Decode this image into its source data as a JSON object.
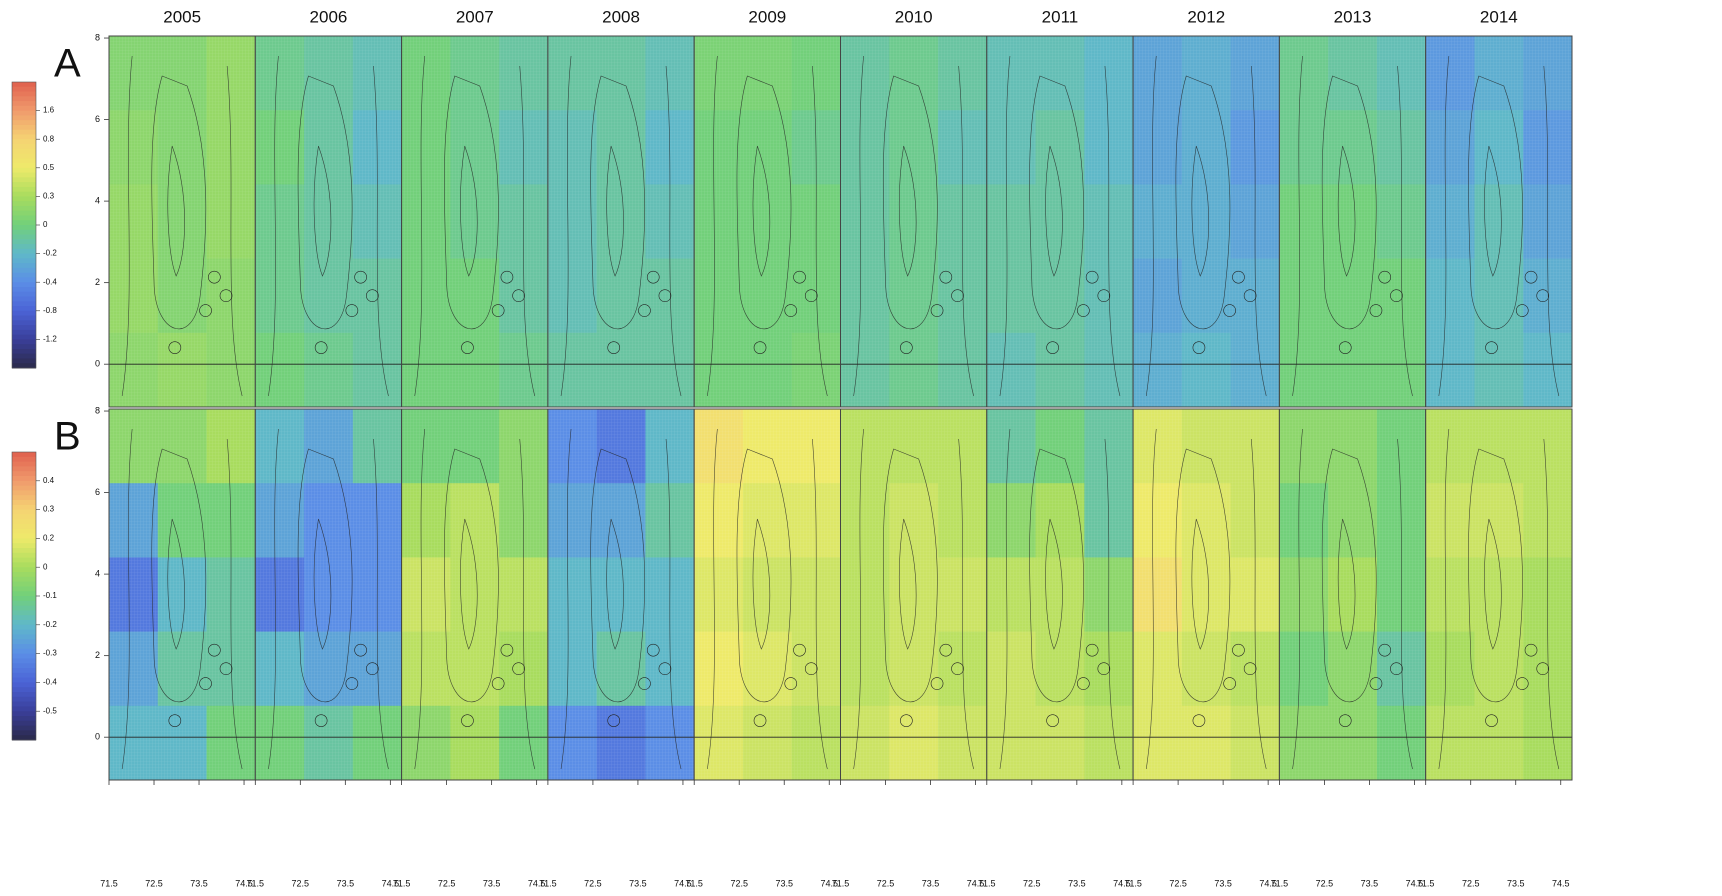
{
  "chart_data": [
    {
      "type": "heatmap",
      "label": "A",
      "xlim": [
        71.5,
        74.75
      ],
      "ylim": [
        -1.05,
        8.05
      ],
      "yticks": [
        0,
        2,
        4,
        6,
        8
      ],
      "colorbar_ticks": [
        -1.2,
        -0.8,
        -0.4,
        -0.2,
        0,
        0.3,
        0.5,
        0.8,
        1.6
      ],
      "palette": [
        "#2b2a4a",
        "#3a3f9a",
        "#4b63d6",
        "#5b8ee6",
        "#5fb8c8",
        "#72d07a",
        "#a8dc5e",
        "#eeea6a",
        "#f5d373",
        "#f09a6c",
        "#e0604e"
      ],
      "panels": [
        {
          "title": "2005",
          "values": [
            [
              0.1,
              0.1,
              0.2
            ],
            [
              0.15,
              0.1,
              0.2
            ],
            [
              0.2,
              0.1,
              0.2
            ],
            [
              0.2,
              0.1,
              0.15
            ],
            [
              0.15,
              0.2,
              0.15
            ]
          ]
        },
        {
          "title": "2006",
          "values": [
            [
              -0.05,
              -0.1,
              -0.15
            ],
            [
              0,
              -0.1,
              -0.2
            ],
            [
              -0.05,
              -0.1,
              -0.15
            ],
            [
              -0.05,
              -0.1,
              -0.1
            ],
            [
              0,
              -0.05,
              -0.1
            ]
          ]
        },
        {
          "title": "2007",
          "values": [
            [
              0,
              -0.05,
              -0.1
            ],
            [
              0,
              -0.05,
              -0.15
            ],
            [
              0,
              -0.05,
              -0.1
            ],
            [
              0,
              0,
              -0.1
            ],
            [
              0,
              0,
              -0.05
            ]
          ]
        },
        {
          "title": "2008",
          "values": [
            [
              -0.1,
              -0.1,
              -0.15
            ],
            [
              -0.15,
              -0.1,
              -0.2
            ],
            [
              -0.15,
              -0.1,
              -0.15
            ],
            [
              -0.15,
              -0.1,
              -0.1
            ],
            [
              -0.1,
              -0.1,
              -0.1
            ]
          ]
        },
        {
          "title": "2009",
          "values": [
            [
              0.05,
              0.05,
              0
            ],
            [
              0,
              0,
              -0.05
            ],
            [
              0,
              0,
              0
            ],
            [
              0,
              0,
              0
            ],
            [
              0,
              0,
              0.05
            ]
          ]
        },
        {
          "title": "2010",
          "values": [
            [
              -0.1,
              -0.05,
              -0.1
            ],
            [
              -0.1,
              -0.05,
              -0.15
            ],
            [
              -0.1,
              -0.05,
              -0.1
            ],
            [
              -0.1,
              -0.05,
              -0.1
            ],
            [
              -0.1,
              -0.05,
              -0.1
            ]
          ]
        },
        {
          "title": "2011",
          "values": [
            [
              -0.15,
              -0.15,
              -0.2
            ],
            [
              -0.15,
              -0.1,
              -0.2
            ],
            [
              -0.1,
              -0.1,
              -0.15
            ],
            [
              -0.1,
              -0.1,
              -0.15
            ],
            [
              -0.15,
              -0.1,
              -0.15
            ]
          ]
        },
        {
          "title": "2012",
          "values": [
            [
              -0.3,
              -0.25,
              -0.3
            ],
            [
              -0.3,
              -0.25,
              -0.35
            ],
            [
              -0.25,
              -0.25,
              -0.3
            ],
            [
              -0.3,
              -0.25,
              -0.25
            ],
            [
              -0.25,
              -0.2,
              -0.25
            ]
          ]
        },
        {
          "title": "2013",
          "values": [
            [
              -0.05,
              -0.1,
              -0.15
            ],
            [
              -0.05,
              -0.05,
              -0.1
            ],
            [
              0,
              0,
              -0.05
            ],
            [
              0,
              0,
              0
            ],
            [
              0,
              0,
              0
            ]
          ]
        },
        {
          "title": "2014",
          "values": [
            [
              -0.35,
              -0.25,
              -0.3
            ],
            [
              -0.3,
              -0.2,
              -0.35
            ],
            [
              -0.25,
              -0.15,
              -0.3
            ],
            [
              -0.2,
              -0.15,
              -0.25
            ],
            [
              -0.2,
              -0.15,
              -0.2
            ]
          ]
        }
      ]
    },
    {
      "type": "heatmap",
      "label": "B",
      "xlim": [
        71.5,
        74.75
      ],
      "ylim": [
        -1.05,
        8.05
      ],
      "yticks": [
        0,
        2,
        4,
        6,
        8
      ],
      "xticks": [
        71.5,
        72.5,
        73.5,
        74.5
      ],
      "colorbar_ticks": [
        -0.5,
        -0.4,
        -0.3,
        -0.2,
        -0.1,
        0,
        0.2,
        0.3,
        0.4
      ],
      "palette": [
        "#2b2a4a",
        "#3a3f9a",
        "#4b63d6",
        "#5b8ee6",
        "#5fb8c8",
        "#72d07a",
        "#a8dc5e",
        "#eeea6a",
        "#f5d373",
        "#f09a6c",
        "#e0604e"
      ],
      "panels": [
        {
          "values": [
            [
              -0.05,
              -0.05,
              0
            ],
            [
              -0.25,
              -0.1,
              -0.1
            ],
            [
              -0.35,
              -0.2,
              -0.15
            ],
            [
              -0.25,
              -0.15,
              -0.15
            ],
            [
              -0.2,
              -0.2,
              -0.1
            ]
          ]
        },
        {
          "values": [
            [
              -0.2,
              -0.25,
              -0.15
            ],
            [
              -0.25,
              -0.3,
              -0.3
            ],
            [
              -0.35,
              -0.3,
              -0.3
            ],
            [
              -0.2,
              -0.25,
              -0.25
            ],
            [
              -0.1,
              -0.15,
              -0.1
            ]
          ]
        },
        {
          "values": [
            [
              -0.1,
              -0.1,
              -0.05
            ],
            [
              0,
              0.05,
              -0.05
            ],
            [
              0.1,
              0.05,
              0.05
            ],
            [
              0.05,
              0.05,
              0
            ],
            [
              -0.05,
              0,
              -0.1
            ]
          ]
        },
        {
          "values": [
            [
              -0.3,
              -0.35,
              -0.2
            ],
            [
              -0.25,
              -0.25,
              -0.15
            ],
            [
              -0.2,
              -0.2,
              -0.2
            ],
            [
              -0.2,
              -0.15,
              -0.2
            ],
            [
              -0.3,
              -0.35,
              -0.3
            ]
          ]
        },
        {
          "values": [
            [
              0.25,
              0.2,
              0.2
            ],
            [
              0.2,
              0.15,
              0.15
            ],
            [
              0.15,
              0.1,
              0.1
            ],
            [
              0.2,
              0.15,
              0.1
            ],
            [
              0.15,
              0.1,
              0.05
            ]
          ]
        },
        {
          "values": [
            [
              0.05,
              0.05,
              0.05
            ],
            [
              0.05,
              0.1,
              0.05
            ],
            [
              0.05,
              0.1,
              0.1
            ],
            [
              0.05,
              0.1,
              0.05
            ],
            [
              0.1,
              0.15,
              0.1
            ]
          ]
        },
        {
          "values": [
            [
              -0.15,
              -0.1,
              -0.15
            ],
            [
              -0.05,
              0,
              -0.15
            ],
            [
              0.05,
              0.05,
              -0.05
            ],
            [
              0.1,
              0.05,
              0
            ],
            [
              0.1,
              0.1,
              0.05
            ]
          ]
        },
        {
          "values": [
            [
              0.15,
              0.1,
              0.1
            ],
            [
              0.2,
              0.15,
              0.1
            ],
            [
              0.25,
              0.15,
              0.15
            ],
            [
              0.15,
              0.1,
              0.05
            ],
            [
              0.15,
              0.15,
              0.1
            ]
          ]
        },
        {
          "values": [
            [
              -0.05,
              -0.05,
              -0.1
            ],
            [
              -0.1,
              -0.05,
              -0.1
            ],
            [
              -0.05,
              0,
              -0.1
            ],
            [
              -0.1,
              -0.05,
              -0.15
            ],
            [
              -0.05,
              -0.05,
              -0.1
            ]
          ]
        },
        {
          "values": [
            [
              0.05,
              0.05,
              0.05
            ],
            [
              0.1,
              0.1,
              0.05
            ],
            [
              0.05,
              0.05,
              0
            ],
            [
              0,
              0.05,
              0
            ],
            [
              0.05,
              0.05,
              0
            ]
          ]
        }
      ]
    }
  ]
}
